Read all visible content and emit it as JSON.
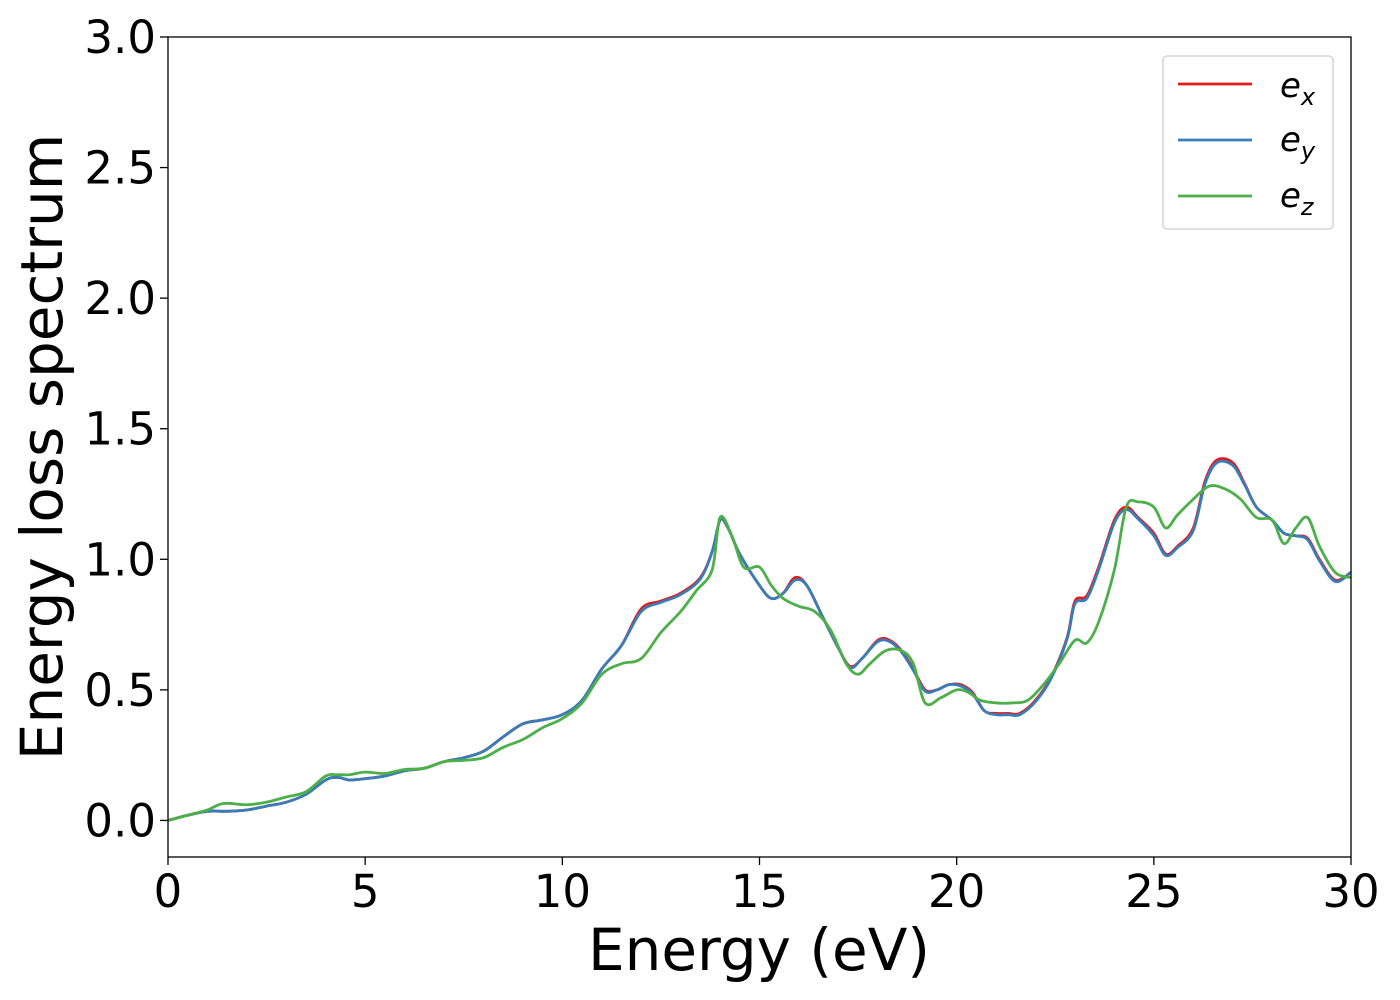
{
  "chart_data": {
    "type": "line",
    "title": "",
    "xlabel": "Energy (eV)",
    "ylabel": "Energy loss spectrum",
    "xlim": [
      0,
      30
    ],
    "ylim": [
      -0.14,
      3.0
    ],
    "xticks": [
      0,
      5,
      10,
      15,
      20,
      25,
      30
    ],
    "xtick_labels": [
      "0",
      "5",
      "10",
      "15",
      "20",
      "25",
      "30"
    ],
    "yticks": [
      0.0,
      0.5,
      1.0,
      1.5,
      2.0,
      2.5,
      3.0
    ],
    "ytick_labels": [
      "0.0",
      "0.5",
      "1.0",
      "1.5",
      "2.0",
      "2.5",
      "3.0"
    ],
    "grid": false,
    "legend_position": "top-right",
    "series": [
      {
        "name": "e",
        "subscript": "x",
        "color": "#e41a1c",
        "x": [
          0.0,
          0.5,
          1.0,
          1.5,
          2.0,
          2.5,
          3.0,
          3.5,
          4.0,
          4.3,
          4.6,
          5.0,
          5.5,
          6.0,
          6.5,
          7.0,
          7.5,
          8.0,
          8.5,
          9.0,
          9.5,
          10.0,
          10.5,
          11.0,
          11.5,
          12.0,
          12.5,
          13.0,
          13.5,
          13.8,
          14.0,
          14.2,
          14.5,
          15.0,
          15.3,
          15.6,
          15.9,
          16.2,
          16.6,
          17.0,
          17.3,
          17.6,
          18.0,
          18.3,
          18.6,
          18.9,
          19.2,
          19.5,
          19.8,
          20.1,
          20.4,
          20.7,
          21.0,
          21.3,
          21.6,
          22.0,
          22.4,
          22.8,
          23.0,
          23.3,
          23.6,
          24.0,
          24.3,
          24.6,
          25.0,
          25.3,
          25.6,
          26.0,
          26.3,
          26.6,
          27.0,
          27.3,
          27.6,
          28.0,
          28.3,
          28.6,
          28.9,
          29.2,
          29.6,
          30.0
        ],
        "y": [
          0.0,
          0.02,
          0.035,
          0.035,
          0.04,
          0.055,
          0.07,
          0.1,
          0.155,
          0.165,
          0.155,
          0.16,
          0.17,
          0.19,
          0.2,
          0.225,
          0.24,
          0.265,
          0.32,
          0.37,
          0.385,
          0.405,
          0.46,
          0.58,
          0.67,
          0.81,
          0.84,
          0.87,
          0.93,
          1.03,
          1.15,
          1.12,
          1.02,
          0.9,
          0.85,
          0.87,
          0.93,
          0.9,
          0.78,
          0.66,
          0.59,
          0.62,
          0.69,
          0.69,
          0.65,
          0.58,
          0.5,
          0.5,
          0.52,
          0.52,
          0.49,
          0.42,
          0.41,
          0.41,
          0.41,
          0.46,
          0.55,
          0.7,
          0.84,
          0.86,
          0.97,
          1.15,
          1.2,
          1.16,
          1.1,
          1.02,
          1.05,
          1.12,
          1.3,
          1.38,
          1.37,
          1.29,
          1.2,
          1.15,
          1.1,
          1.09,
          1.08,
          1.0,
          0.92,
          0.95
        ]
      },
      {
        "name": "e",
        "subscript": "y",
        "color": "#377eb8",
        "x": [
          0.0,
          0.5,
          1.0,
          1.5,
          2.0,
          2.5,
          3.0,
          3.5,
          4.0,
          4.3,
          4.6,
          5.0,
          5.5,
          6.0,
          6.5,
          7.0,
          7.5,
          8.0,
          8.5,
          9.0,
          9.5,
          10.0,
          10.5,
          11.0,
          11.5,
          12.0,
          12.5,
          13.0,
          13.5,
          13.8,
          14.0,
          14.2,
          14.5,
          15.0,
          15.3,
          15.6,
          15.9,
          16.2,
          16.6,
          17.0,
          17.3,
          17.6,
          18.0,
          18.3,
          18.6,
          18.9,
          19.2,
          19.5,
          19.8,
          20.1,
          20.4,
          20.7,
          21.0,
          21.3,
          21.6,
          22.0,
          22.4,
          22.8,
          23.0,
          23.3,
          23.6,
          24.0,
          24.3,
          24.6,
          25.0,
          25.3,
          25.6,
          26.0,
          26.3,
          26.6,
          27.0,
          27.3,
          27.6,
          28.0,
          28.3,
          28.6,
          28.9,
          29.2,
          29.6,
          30.0
        ],
        "y": [
          0.0,
          0.02,
          0.035,
          0.035,
          0.04,
          0.055,
          0.07,
          0.1,
          0.155,
          0.165,
          0.155,
          0.16,
          0.17,
          0.19,
          0.2,
          0.225,
          0.24,
          0.265,
          0.32,
          0.37,
          0.385,
          0.405,
          0.46,
          0.58,
          0.67,
          0.8,
          0.835,
          0.865,
          0.925,
          1.03,
          1.15,
          1.12,
          1.02,
          0.9,
          0.85,
          0.87,
          0.92,
          0.9,
          0.78,
          0.66,
          0.585,
          0.62,
          0.685,
          0.685,
          0.645,
          0.575,
          0.495,
          0.5,
          0.52,
          0.515,
          0.485,
          0.42,
          0.405,
          0.405,
          0.405,
          0.455,
          0.545,
          0.695,
          0.83,
          0.85,
          0.96,
          1.14,
          1.19,
          1.155,
          1.09,
          1.015,
          1.045,
          1.11,
          1.29,
          1.37,
          1.36,
          1.285,
          1.2,
          1.15,
          1.1,
          1.09,
          1.075,
          0.995,
          0.915,
          0.95
        ]
      },
      {
        "name": "e",
        "subscript": "z",
        "color": "#4daf4a",
        "x": [
          0.0,
          0.5,
          1.0,
          1.4,
          2.0,
          2.5,
          3.0,
          3.5,
          4.0,
          4.3,
          4.6,
          5.0,
          5.5,
          6.0,
          6.5,
          7.0,
          7.5,
          8.0,
          8.5,
          9.0,
          9.5,
          10.0,
          10.5,
          11.0,
          11.5,
          12.0,
          12.5,
          13.0,
          13.4,
          13.8,
          14.0,
          14.3,
          14.6,
          15.0,
          15.3,
          15.6,
          16.0,
          16.4,
          16.8,
          17.2,
          17.5,
          17.8,
          18.2,
          18.6,
          18.9,
          19.2,
          19.6,
          20.0,
          20.3,
          20.6,
          21.0,
          21.4,
          21.8,
          22.2,
          22.6,
          23.0,
          23.3,
          23.6,
          24.0,
          24.3,
          24.6,
          25.0,
          25.3,
          25.6,
          26.0,
          26.4,
          26.8,
          27.2,
          27.6,
          28.0,
          28.3,
          28.6,
          28.9,
          29.2,
          29.6,
          30.0
        ],
        "y": [
          0.0,
          0.02,
          0.04,
          0.065,
          0.06,
          0.07,
          0.09,
          0.11,
          0.17,
          0.175,
          0.175,
          0.185,
          0.18,
          0.195,
          0.2,
          0.225,
          0.23,
          0.24,
          0.28,
          0.31,
          0.355,
          0.39,
          0.45,
          0.56,
          0.6,
          0.62,
          0.72,
          0.8,
          0.88,
          0.96,
          1.16,
          1.09,
          0.97,
          0.97,
          0.9,
          0.85,
          0.82,
          0.8,
          0.73,
          0.6,
          0.56,
          0.6,
          0.65,
          0.65,
          0.6,
          0.45,
          0.47,
          0.5,
          0.49,
          0.46,
          0.45,
          0.45,
          0.46,
          0.52,
          0.6,
          0.69,
          0.68,
          0.76,
          0.96,
          1.2,
          1.22,
          1.2,
          1.12,
          1.17,
          1.23,
          1.28,
          1.27,
          1.23,
          1.16,
          1.15,
          1.06,
          1.12,
          1.16,
          1.05,
          0.95,
          0.93
        ]
      }
    ]
  }
}
